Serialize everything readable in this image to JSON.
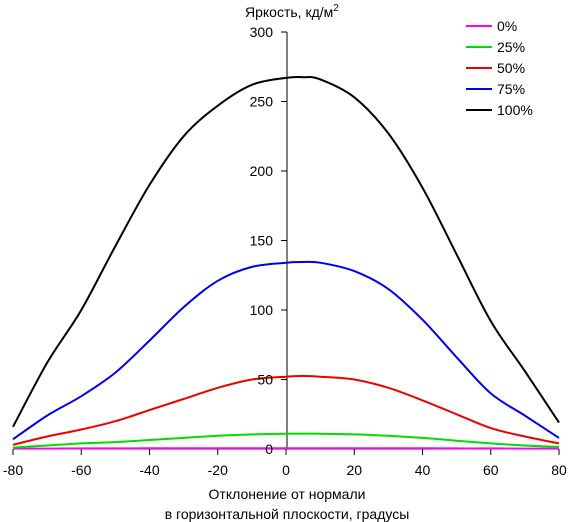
{
  "chart_data": {
    "type": "line",
    "title": "",
    "ylabel": "Яркость, кд/м",
    "ylabel_superscript": "2",
    "xlabel_lines": [
      "Отклонение от нормали",
      "в горизонтальной плоскости, градусы"
    ],
    "xlim": [
      -80,
      80
    ],
    "ylim": [
      0,
      300
    ],
    "xticks": [
      -80,
      -60,
      -40,
      -20,
      0,
      20,
      40,
      60,
      80
    ],
    "yticks": [
      0,
      50,
      100,
      150,
      200,
      250,
      300
    ],
    "grid": false,
    "legend_position": "top-right",
    "x": [
      -80,
      -70,
      -60,
      -50,
      -40,
      -30,
      -20,
      -10,
      0,
      5,
      10,
      20,
      30,
      40,
      50,
      60,
      70,
      80
    ],
    "series": [
      {
        "name": "0%",
        "color": "#ff00ff",
        "values": [
          0.3,
          0.3,
          0.4,
          0.4,
          0.5,
          0.5,
          0.6,
          0.6,
          0.6,
          0.6,
          0.6,
          0.6,
          0.6,
          0.5,
          0.4,
          0.4,
          0.3,
          0.3
        ]
      },
      {
        "name": "25%",
        "color": "#00dd00",
        "values": [
          1,
          2.5,
          4,
          5,
          6.5,
          8,
          9.5,
          10.5,
          11,
          11,
          11,
          10.5,
          9.5,
          8,
          6,
          4,
          2.5,
          1.5
        ]
      },
      {
        "name": "50%",
        "color": "#ee0000",
        "values": [
          3,
          9,
          14,
          20,
          28,
          36,
          44,
          50,
          52,
          52.5,
          52,
          50,
          44,
          35,
          25,
          15,
          9,
          4
        ]
      },
      {
        "name": "75%",
        "color": "#0000ee",
        "values": [
          7,
          24,
          38,
          55,
          78,
          102,
          121,
          131,
          134,
          134.5,
          134,
          128,
          115,
          93,
          66,
          40,
          24,
          8
        ]
      },
      {
        "name": "100%",
        "color": "#000000",
        "values": [
          16,
          62,
          100,
          146,
          190,
          225,
          247,
          262,
          267,
          267.5,
          266,
          253,
          227,
          188,
          140,
          92,
          56,
          19
        ]
      }
    ]
  }
}
